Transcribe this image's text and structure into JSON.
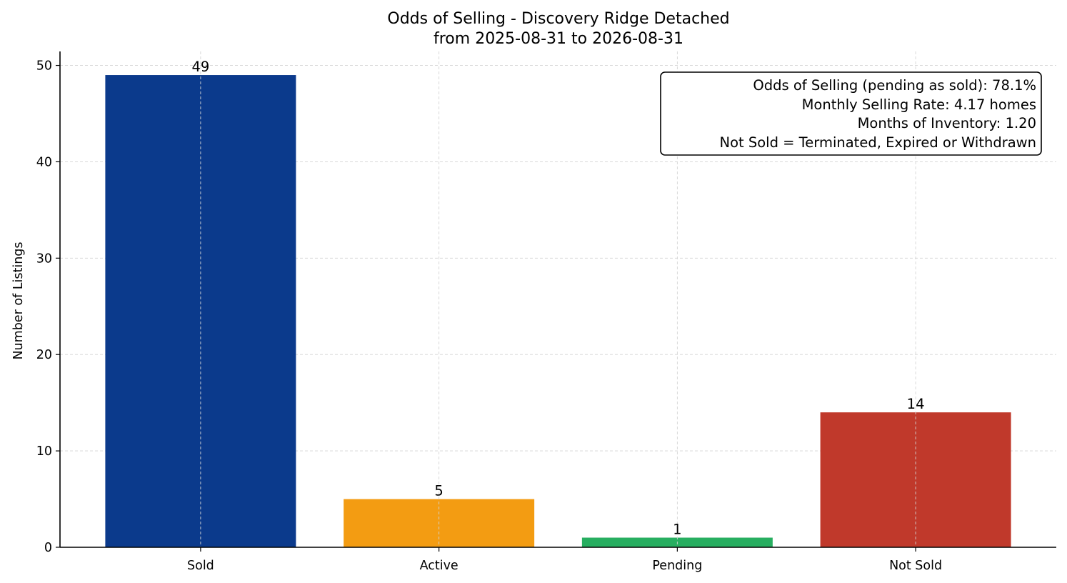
{
  "chart_data": {
    "type": "bar",
    "title": "Odds of Selling - Discovery Ridge Detached",
    "subtitle": "from 2025-08-31 to 2026-08-31",
    "xlabel": "",
    "ylabel": "Number of Listings",
    "categories": [
      "Sold",
      "Active",
      "Pending",
      "Not Sold"
    ],
    "values": [
      49,
      5,
      1,
      14
    ],
    "colors": [
      "#0b3a8c",
      "#f39c12",
      "#27ae60",
      "#c0392b"
    ],
    "ylim": [
      0,
      51.45
    ],
    "yticks": [
      0,
      10,
      20,
      30,
      40,
      50
    ],
    "grid": true,
    "annotation": {
      "position": "top-right",
      "lines": [
        "Odds of Selling (pending as sold): 78.1%",
        "Monthly Selling Rate: 4.17 homes",
        "Months of Inventory: 1.20",
        "Not Sold = Terminated, Expired or Withdrawn"
      ]
    }
  }
}
